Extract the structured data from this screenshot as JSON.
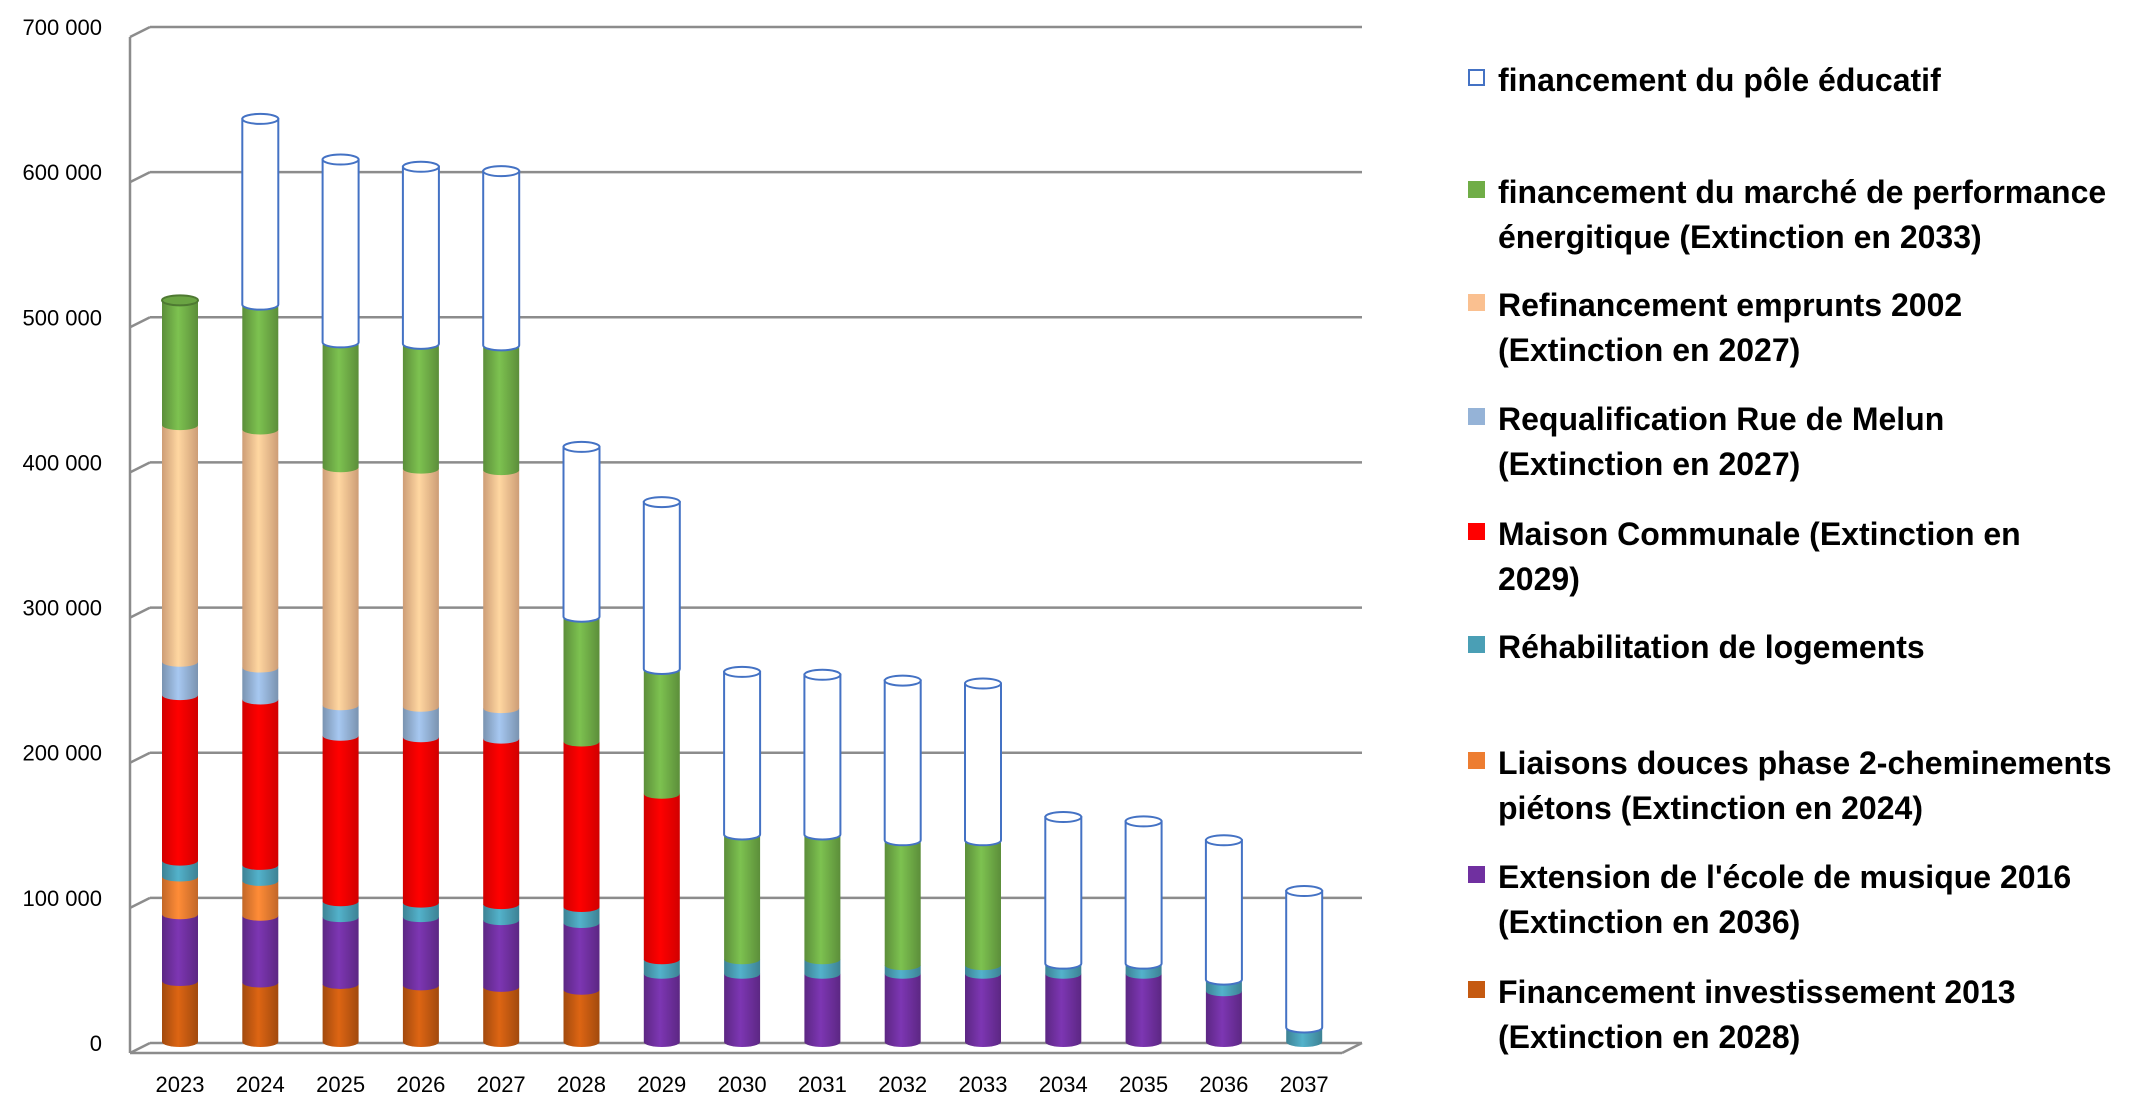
{
  "chart_data": {
    "type": "bar",
    "stacked": true,
    "style": "3d-cylinder",
    "title": "",
    "xlabel": "",
    "ylabel": "",
    "ylim": [
      0,
      700000
    ],
    "yticks": [
      0,
      100000,
      200000,
      300000,
      400000,
      500000,
      600000,
      700000
    ],
    "ytick_labels": [
      "0",
      "100 000",
      "200 000",
      "300 000",
      "400 000",
      "500 000",
      "600 000",
      "700 000"
    ],
    "grid": true,
    "legend_position": "right",
    "categories": [
      "2023",
      "2024",
      "2025",
      "2026",
      "2027",
      "2028",
      "2029",
      "2030",
      "2031",
      "2032",
      "2033",
      "2034",
      "2035",
      "2036",
      "2037"
    ],
    "series": [
      {
        "name": "Financement investissement 2013 (Extinction en 2028)",
        "color": "#c55a11",
        "values": [
          42000,
          41000,
          40000,
          39000,
          38000,
          36000,
          0,
          0,
          0,
          0,
          0,
          0,
          0,
          0,
          0
        ]
      },
      {
        "name": "Extension de l'école de musique 2016 (Extinction en 2036)",
        "color": "#7030a0",
        "values": [
          46000,
          46000,
          46000,
          47000,
          46000,
          46000,
          47000,
          47000,
          47000,
          47000,
          47000,
          47000,
          47000,
          35000,
          0
        ]
      },
      {
        "name": "Liaisons douces phase 2-cheminements piétons (Extinction en 2024)",
        "color": "#ed7d31",
        "values": [
          26000,
          24000,
          0,
          0,
          0,
          0,
          0,
          0,
          0,
          0,
          0,
          0,
          0,
          0,
          0
        ]
      },
      {
        "name": "Réhabilitation de logements",
        "color": "#4a9fb5",
        "values": [
          11000,
          11000,
          11000,
          10000,
          11000,
          11000,
          10000,
          10000,
          10000,
          6000,
          6000,
          7000,
          7000,
          8000,
          10000
        ]
      },
      {
        "name": "Maison Communale (Extinction en 2029)",
        "color": "#ff0000",
        "values": [
          114000,
          114000,
          114000,
          114000,
          114000,
          114000,
          114000,
          0,
          0,
          0,
          0,
          0,
          0,
          0,
          0
        ]
      },
      {
        "name": "Requalification Rue de Melun (Extinction en 2027)",
        "color": "#95b3d7",
        "values": [
          23000,
          22000,
          21000,
          21000,
          21000,
          0,
          0,
          0,
          0,
          0,
          0,
          0,
          0,
          0,
          0
        ]
      },
      {
        "name": "Refinancement emprunts 2002 (Extinction en 2027)",
        "color": "#fac090",
        "values": [
          163000,
          164000,
          164000,
          164000,
          164000,
          0,
          0,
          0,
          0,
          0,
          0,
          0,
          0,
          0,
          0
        ]
      },
      {
        "name": "financement du marché de performance énergitique (Extinction en 2033)",
        "color": "#70ad47",
        "values": [
          86000,
          86000,
          86000,
          86000,
          86000,
          86000,
          86000,
          86000,
          86000,
          86000,
          86000,
          0,
          0,
          0,
          0
        ]
      },
      {
        "name": "financement du pôle éducatif",
        "color": "#ffffff",
        "border": "#4472c4",
        "values": [
          0,
          128000,
          126000,
          122000,
          120000,
          117000,
          115000,
          112000,
          110000,
          110000,
          108000,
          101000,
          98000,
          96000,
          94000
        ]
      }
    ]
  },
  "legend": {
    "items": [
      {
        "label": "financement du pôle éducatif",
        "color": "#ffffff",
        "border": "#4472c4"
      },
      {
        "label": "financement du marché de performance\nénergitique (Extinction en 2033)",
        "color": "#70ad47"
      },
      {
        "label": "Refinancement emprunts 2002\n(Extinction en 2027)",
        "color": "#fac090"
      },
      {
        "label": "Requalification Rue de Melun\n(Extinction en 2027)",
        "color": "#95b3d7"
      },
      {
        "label": "Maison Communale (Extinction en\n2029)",
        "color": "#ff0000"
      },
      {
        "label": "Réhabilitation de logements",
        "color": "#4a9fb5"
      },
      {
        "label": "Liaisons douces phase 2-cheminements\npiétons (Extinction en 2024)",
        "color": "#ed7d31"
      },
      {
        "label": "Extension de l'école de musique 2016\n(Extinction en 2036)",
        "color": "#7030a0"
      },
      {
        "label": "Financement investissement 2013\n(Extinction en 2028)",
        "color": "#c55a11"
      }
    ]
  }
}
